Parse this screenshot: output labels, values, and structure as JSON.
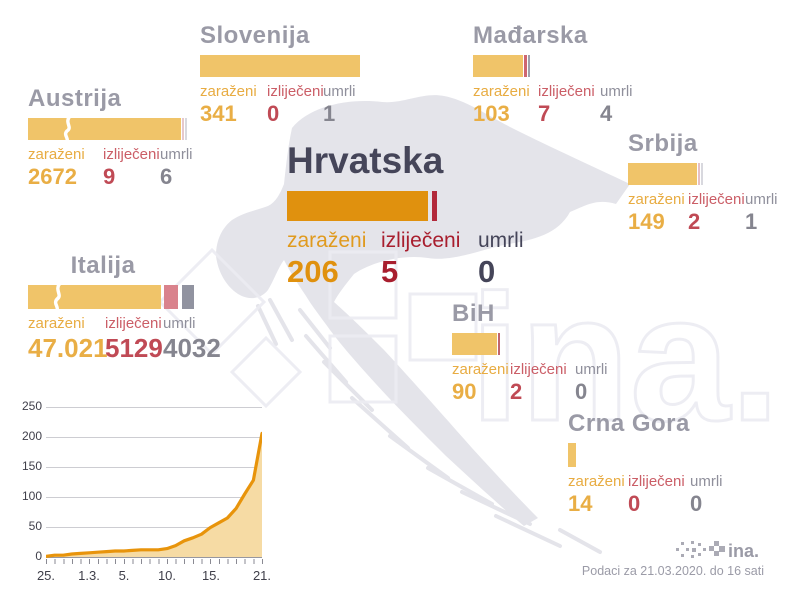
{
  "legend": {
    "infected": "zaraženi",
    "recovered": "izliječeni",
    "deaths": "umrli"
  },
  "croatia": {
    "name": "Hrvatska",
    "values": {
      "infected": "206",
      "recovered": "5",
      "deaths": "0"
    }
  },
  "countries": [
    {
      "name": "Slovenija",
      "values": {
        "infected": "341",
        "recovered": "0",
        "deaths": "1"
      }
    },
    {
      "name": "Mađarska",
      "values": {
        "infected": "103",
        "recovered": "7",
        "deaths": "4"
      }
    },
    {
      "name": "Austrija",
      "values": {
        "infected": "2672",
        "recovered": "9",
        "deaths": "6"
      }
    },
    {
      "name": "Srbija",
      "values": {
        "infected": "149",
        "recovered": "2",
        "deaths": "1"
      }
    },
    {
      "name": "Italija",
      "values": {
        "infected": "47.021",
        "recovered": "5129",
        "deaths": "4032"
      }
    },
    {
      "name": "BiH",
      "values": {
        "infected": "90",
        "recovered": "2",
        "deaths": "0"
      }
    },
    {
      "name": "Crna Gora",
      "values": {
        "infected": "14",
        "recovered": "0",
        "deaths": "0"
      }
    }
  ],
  "footer": {
    "note": "Podaci za 21.03.2020. do 16 sati",
    "logo_text": "ina."
  },
  "colors": {
    "bar_light": "#F0C469",
    "bar_croatia": "#E0910E",
    "croatia_red_tick": "#B2293B",
    "infected_orange": "#E8AC42",
    "recovered_red": "#CB5E67",
    "deaths_gray": "#8F8F9B",
    "title_gray": "#9A9AA6",
    "croatia_dark": "#454559",
    "map_gray": "#E4E4EA",
    "chart_line": "#E8940B",
    "chart_fill": "#F6DBA4"
  },
  "chart_data": {
    "type": "area",
    "title": "",
    "xlabel": "",
    "ylabel": "",
    "x": [
      "25.2.",
      "26.2.",
      "27.2.",
      "28.2.",
      "29.2.",
      "1.3.",
      "2.3.",
      "3.3.",
      "4.3.",
      "5.3.",
      "6.3.",
      "7.3.",
      "8.3.",
      "9.3.",
      "10.3.",
      "11.3.",
      "12.3.",
      "13.3.",
      "14.3.",
      "15.3.",
      "16.3.",
      "17.3.",
      "18.3.",
      "19.3.",
      "20.3.",
      "21.3."
    ],
    "values": [
      1,
      3,
      3,
      5,
      6,
      7,
      8,
      9,
      10,
      10,
      11,
      12,
      12,
      12,
      14,
      19,
      27,
      32,
      38,
      49,
      57,
      65,
      81,
      105,
      128,
      206
    ],
    "ylim": [
      0,
      250
    ],
    "grid": true,
    "legend_position": "none",
    "ytick_labels": [
      "250",
      "200",
      "150",
      "100",
      "50",
      "0"
    ],
    "xtick_labels": [
      "25.",
      "1.3.",
      "5.",
      "10.",
      "15.",
      "21."
    ]
  }
}
